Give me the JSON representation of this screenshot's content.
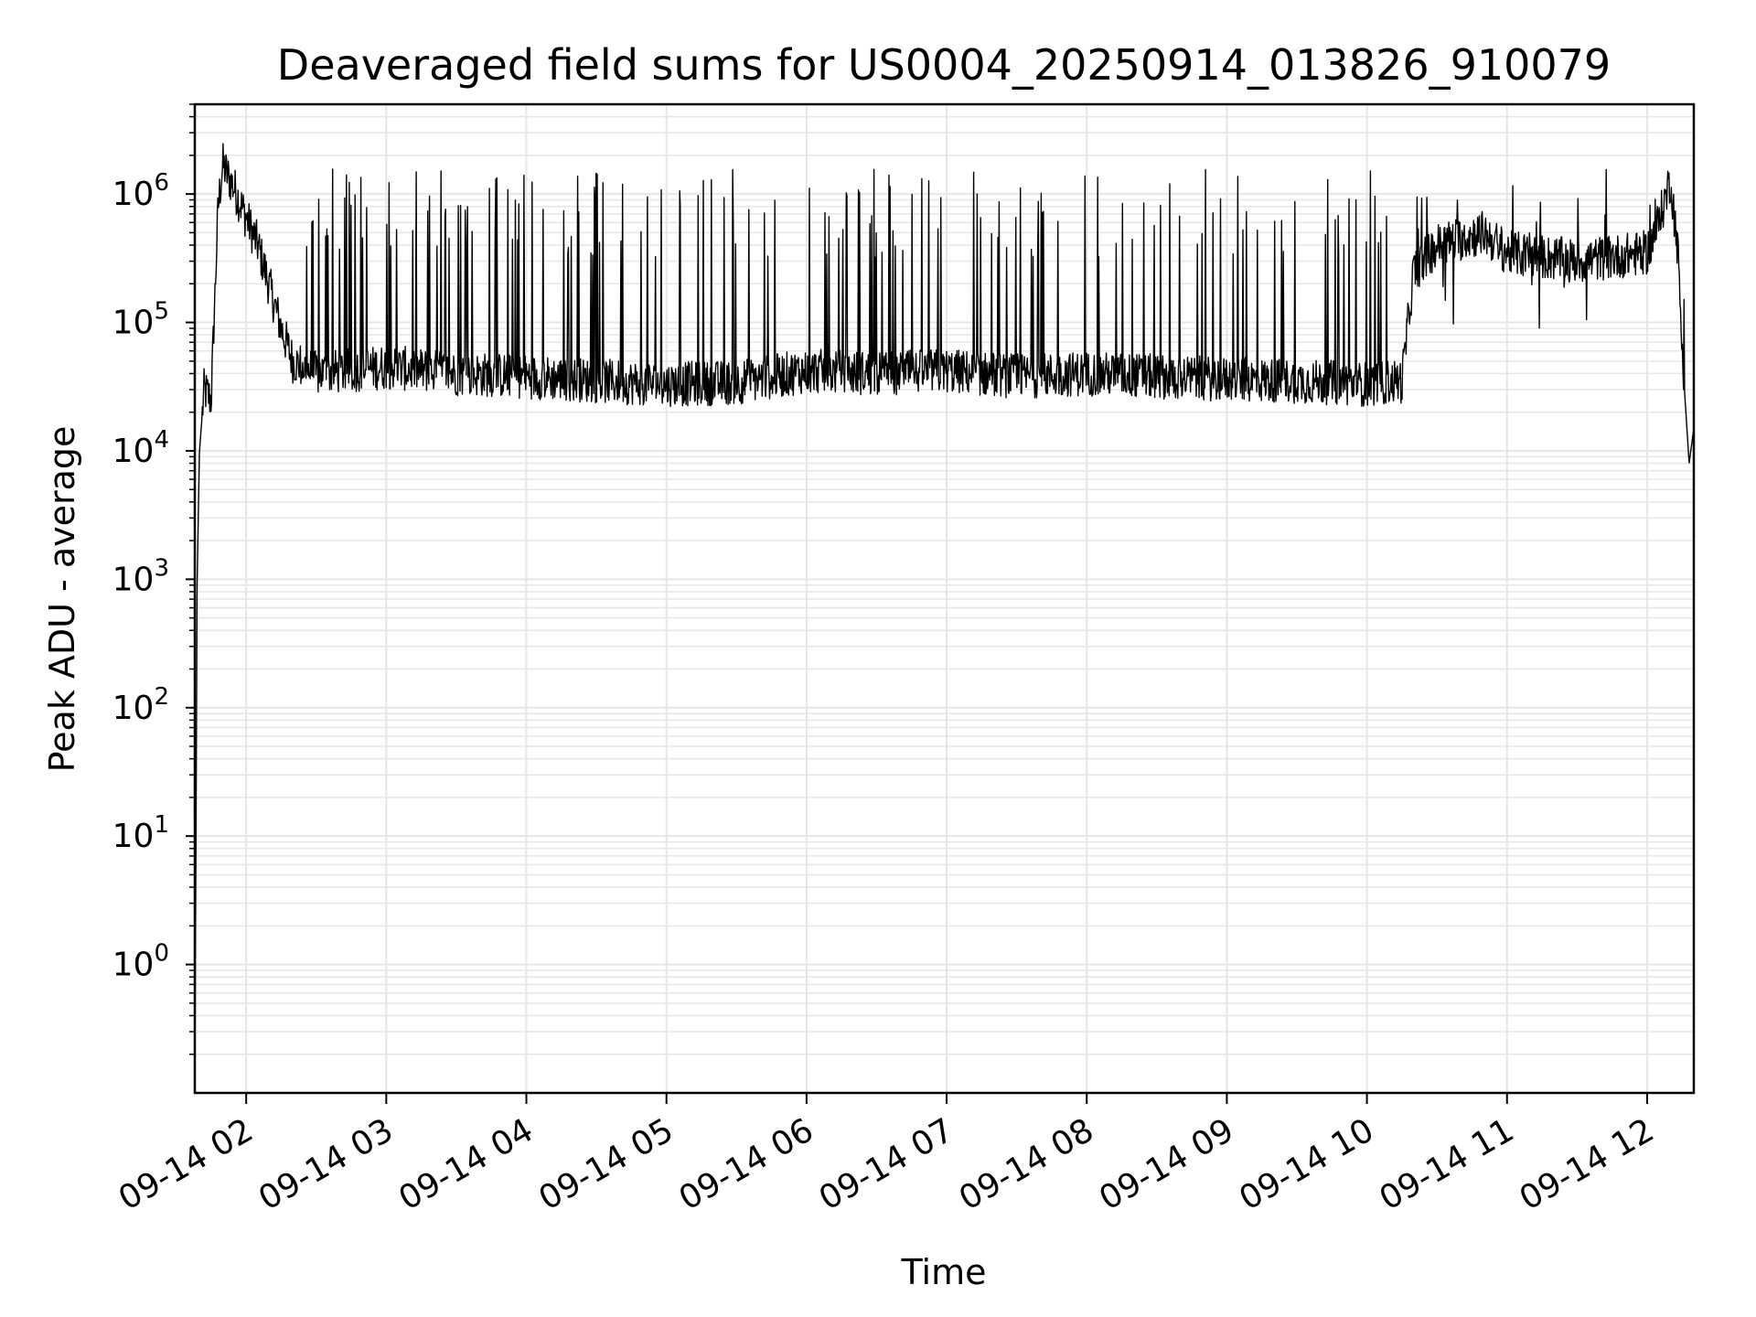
{
  "chart_data": {
    "type": "line",
    "title": "Deaveraged field sums for US0004_20250914_013826_910079",
    "xlabel": "Time",
    "ylabel": "Peak ADU - average",
    "yscale": "log",
    "ylim": [
      0.1,
      5000000
    ],
    "xlim": [
      "2025-09-14 01:38",
      "2025-09-14 12:20"
    ],
    "grid": true,
    "line_color": "#000000",
    "grid_color": "#e6e6e6",
    "x_ticks": [
      {
        "value": "2025-09-14 02:00",
        "label": "09-14 02"
      },
      {
        "value": "2025-09-14 03:00",
        "label": "09-14 03"
      },
      {
        "value": "2025-09-14 04:00",
        "label": "09-14 04"
      },
      {
        "value": "2025-09-14 05:00",
        "label": "09-14 05"
      },
      {
        "value": "2025-09-14 06:00",
        "label": "09-14 06"
      },
      {
        "value": "2025-09-14 07:00",
        "label": "09-14 07"
      },
      {
        "value": "2025-09-14 08:00",
        "label": "09-14 08"
      },
      {
        "value": "2025-09-14 09:00",
        "label": "09-14 09"
      },
      {
        "value": "2025-09-14 10:00",
        "label": "09-14 10"
      },
      {
        "value": "2025-09-14 11:00",
        "label": "09-14 11"
      },
      {
        "value": "2025-09-14 12:00",
        "label": "09-14 12"
      }
    ],
    "y_ticks": [
      {
        "exp": 0,
        "mantissa": "10",
        "sup": "0"
      },
      {
        "exp": 1,
        "mantissa": "10",
        "sup": "1"
      },
      {
        "exp": 2,
        "mantissa": "10",
        "sup": "2"
      },
      {
        "exp": 3,
        "mantissa": "10",
        "sup": "3"
      },
      {
        "exp": 4,
        "mantissa": "10",
        "sup": "4"
      },
      {
        "exp": 5,
        "mantissa": "10",
        "sup": "5"
      },
      {
        "exp": 6,
        "mantissa": "10",
        "sup": "6"
      }
    ],
    "series": [
      {
        "description_of_shape": "approximate envelope read from plot",
        "x": [
          "2025-09-14 01:38",
          "2025-09-14 01:39",
          "2025-09-14 01:40",
          "2025-09-14 01:42",
          "2025-09-14 01:45",
          "2025-09-14 01:48",
          "2025-09-14 01:50",
          "2025-09-14 01:52",
          "2025-09-14 01:55",
          "2025-09-14 01:58",
          "2025-09-14 02:05",
          "2025-09-14 02:15",
          "2025-09-14 02:20",
          "2025-09-14 02:30",
          "2025-09-14 03:00",
          "2025-09-14 03:30",
          "2025-09-14 04:00",
          "2025-09-14 04:30",
          "2025-09-14 05:00",
          "2025-09-14 05:30",
          "2025-09-14 06:00",
          "2025-09-14 06:30",
          "2025-09-14 07:00",
          "2025-09-14 07:30",
          "2025-09-14 08:00",
          "2025-09-14 08:30",
          "2025-09-14 09:00",
          "2025-09-14 09:30",
          "2025-09-14 10:00",
          "2025-09-14 10:15",
          "2025-09-14 10:20",
          "2025-09-14 10:30",
          "2025-09-14 10:50",
          "2025-09-14 11:00",
          "2025-09-14 11:30",
          "2025-09-14 12:00",
          "2025-09-14 12:05",
          "2025-09-14 12:10",
          "2025-09-14 12:13",
          "2025-09-14 12:16",
          "2025-09-14 12:18",
          "2025-09-14 12:20"
        ],
        "y": [
          0.1,
          1000,
          10000,
          30000,
          25000,
          800000,
          1700000,
          1400000,
          1100000,
          800000,
          400000,
          90000,
          50000,
          40000,
          45000,
          40000,
          38000,
          35000,
          33000,
          34000,
          42000,
          40000,
          42000,
          38000,
          40000,
          38000,
          36000,
          35000,
          33000,
          35000,
          250000,
          400000,
          500000,
          350000,
          300000,
          350000,
          600000,
          1300000,
          400000,
          30000,
          8000,
          15000
        ]
      }
    ]
  }
}
